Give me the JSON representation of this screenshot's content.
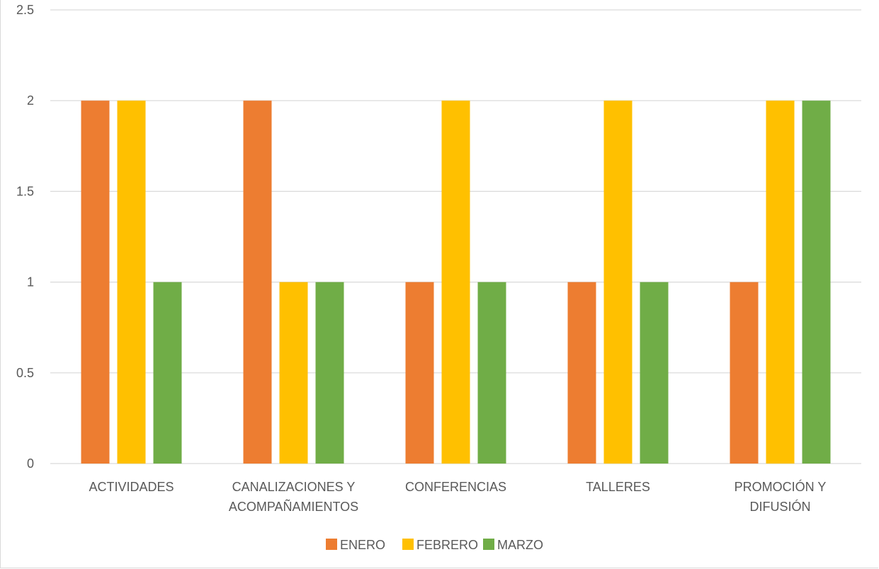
{
  "chart_data": {
    "type": "bar",
    "categories": [
      [
        "ACTIVIDADES"
      ],
      [
        "CANALIZACIONES Y",
        "ACOMPAÑAMIENTOS"
      ],
      [
        "CONFERENCIAS"
      ],
      [
        "TALLERES"
      ],
      [
        "PROMOCIÓN Y",
        "DIFUSIÓN"
      ]
    ],
    "series": [
      {
        "name": "ENERO",
        "values": [
          2,
          2,
          1,
          1,
          1
        ],
        "color": "#ED7D31"
      },
      {
        "name": "FEBRERO",
        "values": [
          2,
          1,
          2,
          2,
          2
        ],
        "color": "#FFC000"
      },
      {
        "name": "MARZO",
        "values": [
          1,
          1,
          1,
          1,
          2
        ],
        "color": "#70AD47"
      }
    ],
    "y_ticks": [
      "0",
      "0.5",
      "1",
      "1.5",
      "2",
      "2.5"
    ],
    "ylim": [
      0,
      2.5
    ],
    "grid": true,
    "legend_position": "bottom",
    "title": "",
    "xlabel": "",
    "ylabel": ""
  }
}
